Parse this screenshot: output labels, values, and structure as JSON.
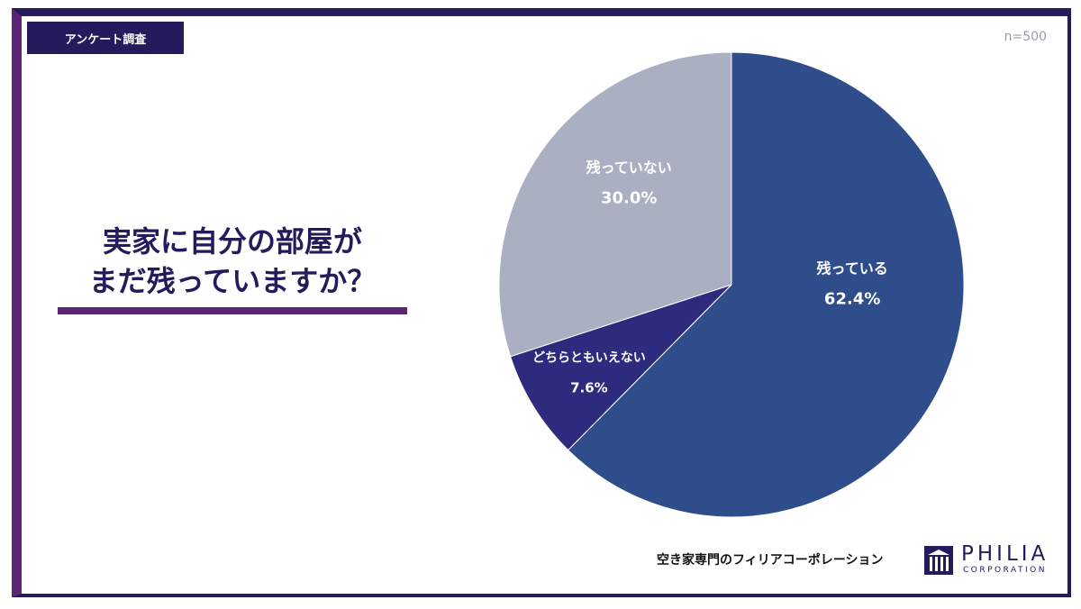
{
  "header": {
    "tag_label": "アンケート調査",
    "sample_size": "n=500"
  },
  "question": {
    "line1": "実家に自分の部屋が",
    "line2": "まだ残っていますか？"
  },
  "chart_data": {
    "type": "pie",
    "title": "",
    "slices": [
      {
        "label": "残っている",
        "value": 62.4,
        "value_label": "62.4%",
        "color": "#2f4d8a"
      },
      {
        "label": "どちらともいえない",
        "value": 7.6,
        "value_label": "7.6%",
        "color": "#2e2a7e"
      },
      {
        "label": "残っていない",
        "value": 30.0,
        "value_label": "30.0%",
        "color": "#aab0c2"
      }
    ],
    "start_angle": "12 o'clock",
    "direction": "clockwise"
  },
  "footer": {
    "company_tagline": "空き家専門のフィリアコーポレーション",
    "logo_name": "PHILIA",
    "logo_sub": "CORPORATION"
  },
  "colors": {
    "navy": "#231b5c",
    "purple": "#5b2475"
  }
}
